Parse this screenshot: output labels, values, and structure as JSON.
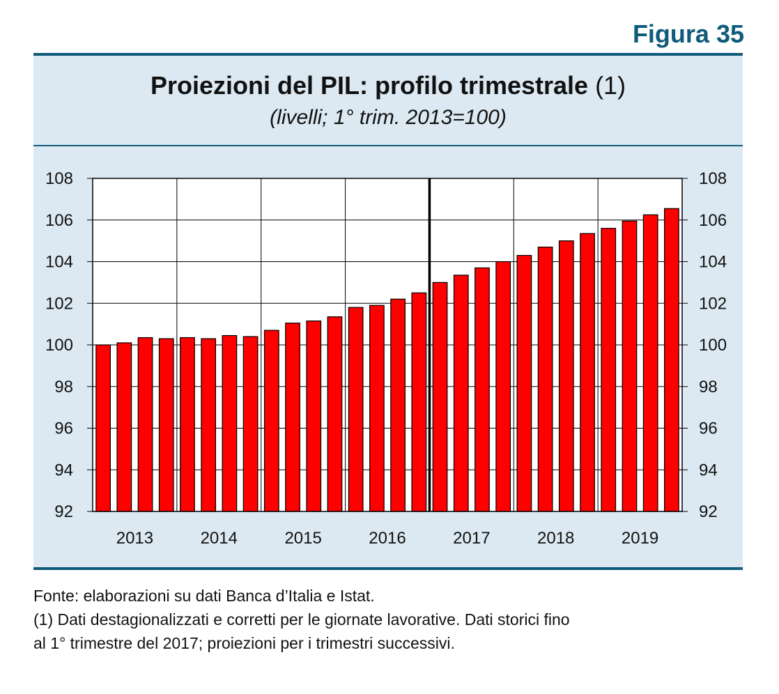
{
  "figure_label": "Figura 35",
  "title_main": "Proiezioni del PIL: profilo trimestrale",
  "title_note": "(1)",
  "subtitle": "(livelli; 1° trim. 2013=100)",
  "footnotes": {
    "source": "Fonte: elaborazioni su dati Banca d’Italia e Istat.",
    "note_line1": "(1) Dati destagionalizzati e corretti per le giornate lavorative. Dati storici fino",
    "note_line2": "al 1° trimestre del 2017; proiezioni per i trimestri successivi."
  },
  "colors": {
    "bar_fill": "#ff0000",
    "bar_stroke": "#000000",
    "frame": "#0f5b7a",
    "panel_bg": "#dce9f2"
  },
  "chart_data": {
    "type": "bar",
    "x": [
      "2013 T1",
      "2013 T2",
      "2013 T3",
      "2013 T4",
      "2014 T1",
      "2014 T2",
      "2014 T3",
      "2014 T4",
      "2015 T1",
      "2015 T2",
      "2015 T3",
      "2015 T4",
      "2016 T1",
      "2016 T2",
      "2016 T3",
      "2016 T4",
      "2017 T1",
      "2017 T2",
      "2017 T3",
      "2017 T4",
      "2018 T1",
      "2018 T2",
      "2018 T3",
      "2018 T4",
      "2019 T1",
      "2019 T2",
      "2019 T3",
      "2019 T4"
    ],
    "values": [
      100.0,
      100.1,
      100.35,
      100.3,
      100.35,
      100.3,
      100.45,
      100.4,
      100.7,
      101.05,
      101.15,
      101.35,
      101.8,
      101.9,
      102.2,
      102.5,
      103.0,
      103.35,
      103.7,
      104.0,
      104.3,
      104.7,
      105.0,
      105.35,
      105.6,
      105.95,
      106.25,
      106.55
    ],
    "year_labels": [
      "2013",
      "2014",
      "2015",
      "2016",
      "2017",
      "2018",
      "2019"
    ],
    "ylim": [
      92,
      108
    ],
    "y_ticks": [
      "92",
      "94",
      "96",
      "98",
      "100",
      "102",
      "104",
      "106",
      "108"
    ],
    "grid": true,
    "divider_after_index": 16,
    "title": "Proiezioni del PIL: profilo trimestrale (1)",
    "subtitle": "(livelli; 1° trim. 2013=100)"
  }
}
